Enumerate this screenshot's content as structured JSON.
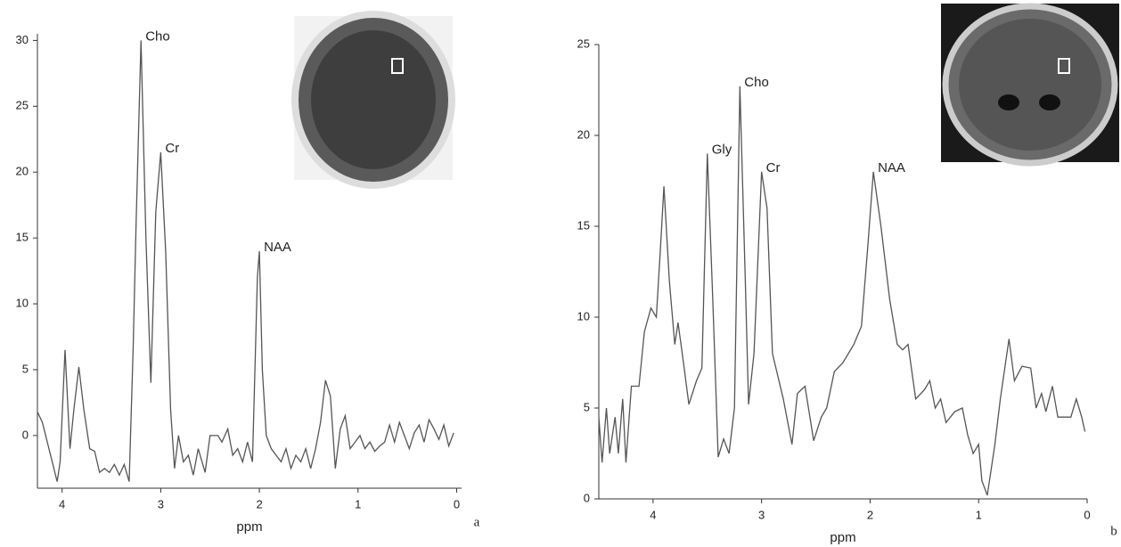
{
  "chart_data": [
    {
      "type": "line",
      "xlabel": "ppm",
      "panel_label": "a",
      "color": "#555555",
      "xlim": [
        4.25,
        -0.05
      ],
      "ylim": [
        -4,
        30.5
      ],
      "xticks": [
        4,
        3,
        2,
        1,
        0
      ],
      "yticks": [
        0,
        5,
        10,
        15,
        20,
        25,
        30
      ],
      "x": [
        4.25,
        4.2,
        4.15,
        4.1,
        4.05,
        4.02,
        3.97,
        3.92,
        3.88,
        3.83,
        3.78,
        3.72,
        3.67,
        3.62,
        3.57,
        3.52,
        3.47,
        3.42,
        3.37,
        3.32,
        3.28,
        3.25,
        3.2,
        3.15,
        3.1,
        3.05,
        3.0,
        2.95,
        2.9,
        2.86,
        2.82,
        2.77,
        2.72,
        2.67,
        2.62,
        2.55,
        2.5,
        2.42,
        2.38,
        2.32,
        2.27,
        2.22,
        2.17,
        2.12,
        2.07,
        2.02,
        2.0,
        1.97,
        1.93,
        1.88,
        1.83,
        1.78,
        1.73,
        1.68,
        1.63,
        1.58,
        1.53,
        1.48,
        1.43,
        1.38,
        1.33,
        1.28,
        1.23,
        1.18,
        1.13,
        1.08,
        1.03,
        0.98,
        0.93,
        0.88,
        0.83,
        0.78,
        0.73,
        0.68,
        0.63,
        0.58,
        0.53,
        0.48,
        0.43,
        0.38,
        0.33,
        0.28,
        0.23,
        0.18,
        0.13,
        0.08,
        0.03
      ],
      "values": [
        1.8,
        1.0,
        -0.5,
        -2,
        -3.5,
        -2,
        6.5,
        -1,
        2,
        5.2,
        2,
        -1,
        -1.2,
        -2.8,
        -2.5,
        -2.8,
        -2.2,
        -3,
        -2.2,
        -3.5,
        6.5,
        16,
        30,
        15,
        4,
        17,
        21.5,
        14,
        2,
        -2.5,
        0,
        -2,
        -1.5,
        -3,
        -1,
        -2.8,
        0,
        0,
        -0.5,
        0.5,
        -1.5,
        -1,
        -2,
        -0.5,
        -2,
        12,
        14,
        5,
        0,
        -1,
        -1.5,
        -2,
        -1,
        -2.5,
        -1.5,
        -2,
        -1,
        -2.5,
        -1,
        1,
        4.2,
        3,
        -2.5,
        0.5,
        1.5,
        -1,
        -0.5,
        0,
        -1,
        -0.5,
        -1.2,
        -0.8,
        -0.5,
        0.8,
        -0.5,
        1,
        0,
        -1,
        0.2,
        0.8,
        -0.5,
        1.2,
        0.5,
        -0.3,
        0.8,
        -0.8,
        0.2
      ],
      "annotations": [
        {
          "text": "Cho",
          "x": 3.2,
          "y": 30
        },
        {
          "text": "Cr",
          "x": 3.0,
          "y": 21.5
        },
        {
          "text": "NAA",
          "x": 2.0,
          "y": 14
        }
      ]
    },
    {
      "type": "line",
      "xlabel": "ppm",
      "panel_label": "b",
      "color": "#555555",
      "xlim": [
        4.5,
        0
      ],
      "ylim": [
        0,
        25
      ],
      "xticks": [
        4,
        3,
        2,
        1,
        0
      ],
      "yticks": [
        0,
        5,
        10,
        15,
        20,
        25
      ],
      "x": [
        4.5,
        4.47,
        4.43,
        4.4,
        4.35,
        4.32,
        4.28,
        4.25,
        4.2,
        4.13,
        4.08,
        4.02,
        3.97,
        3.93,
        3.9,
        3.85,
        3.8,
        3.77,
        3.72,
        3.67,
        3.6,
        3.55,
        3.5,
        3.45,
        3.4,
        3.35,
        3.3,
        3.25,
        3.2,
        3.15,
        3.12,
        3.07,
        3.0,
        2.95,
        2.9,
        2.8,
        2.72,
        2.67,
        2.6,
        2.52,
        2.45,
        2.4,
        2.33,
        2.25,
        2.15,
        2.08,
        2.02,
        1.97,
        1.9,
        1.82,
        1.75,
        1.7,
        1.65,
        1.58,
        1.5,
        1.45,
        1.4,
        1.35,
        1.3,
        1.22,
        1.15,
        1.1,
        1.05,
        1.0,
        0.97,
        0.92,
        0.85,
        0.8,
        0.72,
        0.67,
        0.6,
        0.52,
        0.47,
        0.42,
        0.38,
        0.32,
        0.27,
        0.15,
        0.1,
        0.05,
        0.02
      ],
      "values": [
        4.5,
        2,
        5,
        2.5,
        4.5,
        2.5,
        5.5,
        2,
        6.2,
        6.2,
        9.2,
        10.5,
        10,
        14,
        17.2,
        12,
        8.5,
        9.7,
        7.5,
        5.2,
        6.5,
        7.2,
        19,
        11,
        2.3,
        3.3,
        2.5,
        5,
        22.7,
        12,
        5.2,
        8,
        18,
        16,
        8,
        5.5,
        3,
        5.8,
        6.2,
        3.2,
        4.5,
        5,
        7,
        7.5,
        8.5,
        9.5,
        14,
        18,
        15,
        11,
        8.5,
        8.2,
        8.5,
        5.5,
        6,
        6.5,
        5,
        5.5,
        4.2,
        4.8,
        5,
        3.5,
        2.5,
        3,
        1,
        0.2,
        3,
        5.5,
        8.8,
        6.5,
        7.3,
        7.2,
        5,
        5.8,
        4.8,
        6.2,
        4.5,
        4.5,
        5.5,
        4.5,
        3.7
      ],
      "annotations": [
        {
          "text": "Gly",
          "x": 3.5,
          "y": 19
        },
        {
          "text": "Cho",
          "x": 3.2,
          "y": 22.7
        },
        {
          "text": "Cr",
          "x": 3.0,
          "y": 18
        },
        {
          "text": "NAA",
          "x": 1.97,
          "y": 18
        }
      ]
    }
  ]
}
